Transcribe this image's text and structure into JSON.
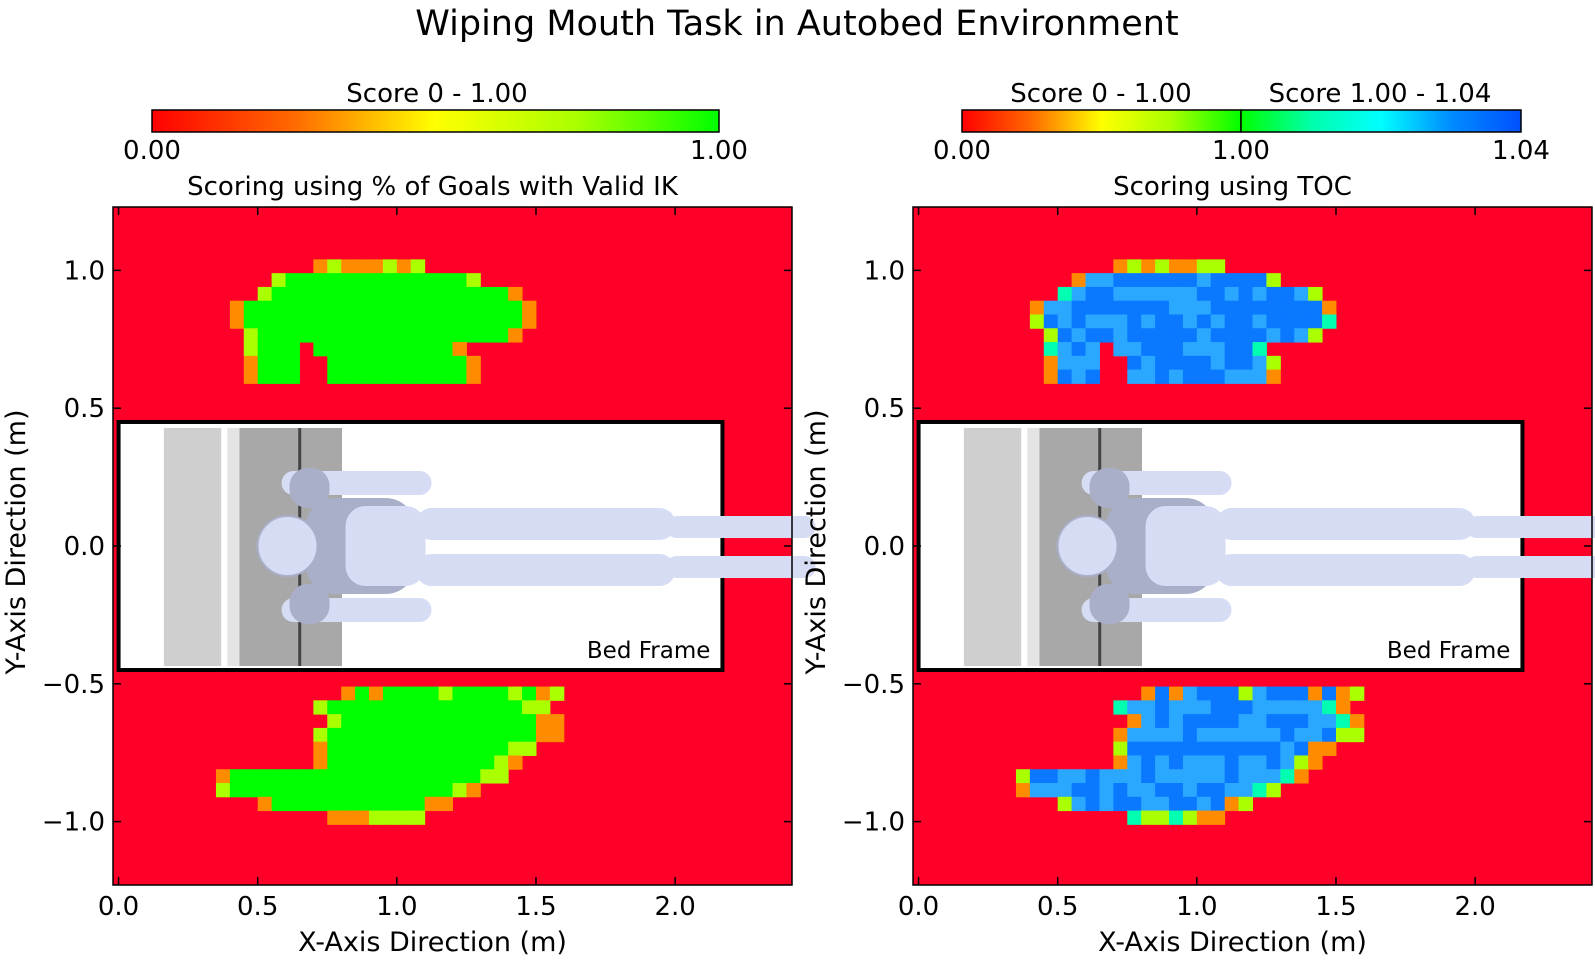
{
  "figure": {
    "title": "Wiping Mouth Task in Autobed Environment"
  },
  "colorbars": {
    "left": {
      "title": "Score 0 - 1.00",
      "tick_labels": [
        "0.00",
        "1.00"
      ],
      "colors": [
        "#ff0000",
        "#ff6a00",
        "#ffff00",
        "#aaff00",
        "#00ff00"
      ]
    },
    "right": {
      "title_low": "Score 0 - 1.00",
      "title_high": "Score 1.00 - 1.04",
      "tick_labels": [
        "0.00",
        "1.00",
        "1.04"
      ],
      "colors_low": [
        "#ff0000",
        "#ff6a00",
        "#ffff00",
        "#aaff00",
        "#00ff00"
      ],
      "colors_high": [
        "#00ff00",
        "#00ffaa",
        "#00ffff",
        "#008cff",
        "#0050ff"
      ]
    }
  },
  "colors": {
    "background_red": "#ff0028",
    "green": "#00ff00",
    "yellow_green": "#aaff00",
    "orange": "#ff8c00",
    "blue": "#0a78ff",
    "light_blue": "#2aa8ff"
  },
  "chart_data": [
    {
      "type": "heatmap",
      "title": "Scoring using % of Goals with Valid IK",
      "xlabel": "X-Axis Direction (m)",
      "ylabel": "Y-Axis Direction (m)",
      "xlim": [
        -0.02,
        2.42
      ],
      "ylim": [
        -1.23,
        1.23
      ],
      "xticks": [
        "0.0",
        "0.5",
        "1.0",
        "1.5",
        "2.0"
      ],
      "yticks": [
        "1.0",
        "0.5",
        "0.0",
        "−0.5",
        "−1.0"
      ],
      "ytick_values": [
        1.0,
        0.5,
        0.0,
        -0.5,
        -1.0
      ],
      "xtick_values": [
        0.0,
        0.5,
        1.0,
        1.5,
        2.0
      ],
      "background_value": 0.0,
      "cell_size_m": 0.05,
      "annotation": "Bed Frame",
      "bed_frame": {
        "x": [
          0.0,
          2.17
        ],
        "y": [
          -0.45,
          0.45
        ]
      },
      "regions": [
        {
          "x": [
            0.45,
            1.45
          ],
          "y": [
            0.5,
            1.0
          ],
          "value": 1.0
        },
        {
          "x": [
            0.4,
            1.6
          ],
          "y": [
            -1.0,
            -0.55
          ],
          "value": 1.0
        }
      ]
    },
    {
      "type": "heatmap",
      "title": "Scoring using TOC",
      "xlabel": "X-Axis Direction (m)",
      "ylabel": "Y-Axis Direction (m)",
      "xlim": [
        -0.02,
        2.42
      ],
      "ylim": [
        -1.23,
        1.23
      ],
      "xticks": [
        "0.0",
        "0.5",
        "1.0",
        "1.5",
        "2.0"
      ],
      "yticks": [
        "1.0",
        "0.5",
        "0.0",
        "−0.5",
        "−1.0"
      ],
      "ytick_values": [
        1.0,
        0.5,
        0.0,
        -0.5,
        -1.0
      ],
      "xtick_values": [
        0.0,
        0.5,
        1.0,
        1.5,
        2.0
      ],
      "background_value": 0.0,
      "cell_size_m": 0.05,
      "annotation": "Bed Frame",
      "bed_frame": {
        "x": [
          0.0,
          2.17
        ],
        "y": [
          -0.45,
          0.45
        ]
      },
      "regions": [
        {
          "x": [
            0.45,
            1.45
          ],
          "y": [
            0.5,
            1.0
          ],
          "value": 1.035
        },
        {
          "x": [
            0.4,
            1.6
          ],
          "y": [
            -1.0,
            -0.55
          ],
          "value": 1.035
        }
      ]
    }
  ]
}
